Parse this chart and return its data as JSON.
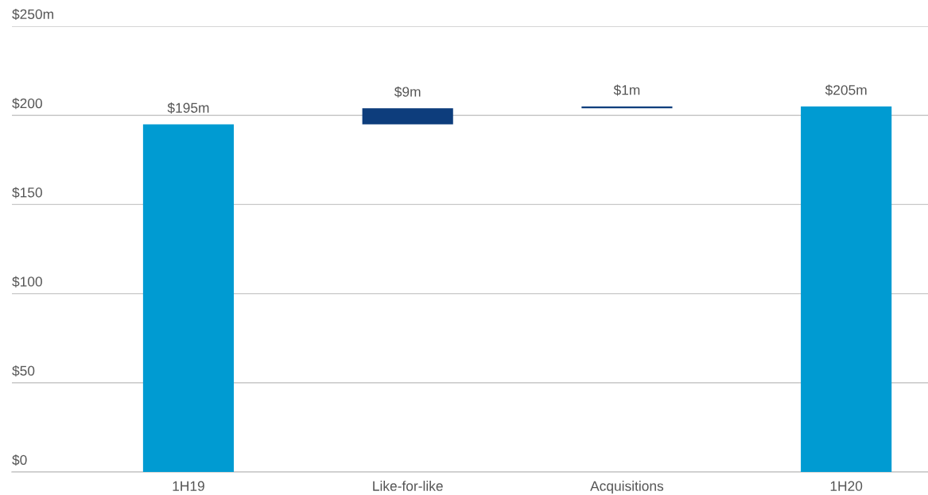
{
  "chart_data": {
    "type": "bar",
    "categories": [
      "1H19",
      "Like-for-like",
      "Acquisitions",
      "1H20"
    ],
    "values": [
      195,
      9,
      1,
      205
    ],
    "base": [
      0,
      195,
      204,
      0
    ],
    "colors": [
      "#009bd2",
      "#0d3d7c",
      "#0d3d7c",
      "#009bd2"
    ],
    "value_labels": [
      "$195m",
      "$9m",
      "$1m",
      "$205m"
    ],
    "ylim": [
      0,
      250
    ],
    "yticks": [
      {
        "value": 0,
        "label": "$0"
      },
      {
        "value": 50,
        "label": "$50"
      },
      {
        "value": 100,
        "label": "$100"
      },
      {
        "value": 150,
        "label": "$150"
      },
      {
        "value": 200,
        "label": "$200"
      },
      {
        "value": 250,
        "label": "$250m"
      }
    ],
    "grid": "y"
  }
}
